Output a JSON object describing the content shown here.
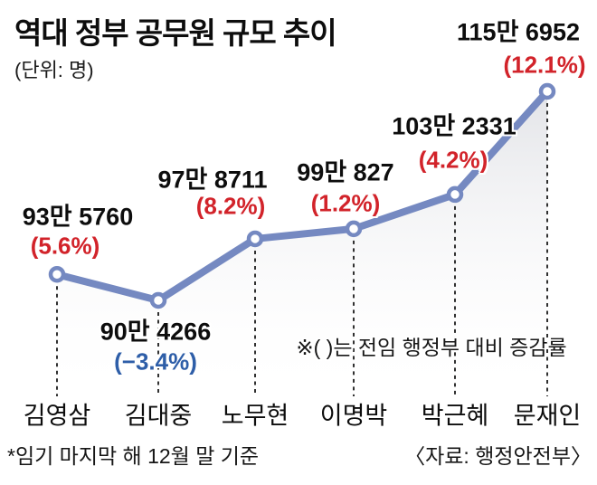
{
  "header": {
    "title": "역대 정부 공무원 규모 추이",
    "unit_note": "(단위: 명)"
  },
  "chart_data": {
    "type": "line",
    "title": "역대 정부 공무원 규모 추이",
    "unit": "명",
    "categories": [
      "김영삼",
      "김대중",
      "노무현",
      "이명박",
      "박근혜",
      "문재인"
    ],
    "values": [
      935760,
      904266,
      978711,
      990827,
      1032331,
      1156952
    ],
    "points": [
      {
        "president": "김영삼",
        "value_label": "93만 5760",
        "pct_label": "(5.6%)",
        "pct_color": "#d2232a"
      },
      {
        "president": "김대중",
        "value_label": "90만 4266",
        "pct_label": "(−3.4%)",
        "pct_color": "#2e5ea8"
      },
      {
        "president": "노무현",
        "value_label": "97만 8711",
        "pct_label": "(8.2%)",
        "pct_color": "#d2232a"
      },
      {
        "president": "이명박",
        "value_label": "99만 827",
        "pct_label": "(1.2%)",
        "pct_color": "#d2232a"
      },
      {
        "president": "박근혜",
        "value_label": "103만 2331",
        "pct_label": "(4.2%)",
        "pct_color": "#d2232a"
      },
      {
        "president": "문재인",
        "value_label": "115만 6952",
        "pct_label": "(12.1%)",
        "pct_color": "#d2232a"
      }
    ],
    "annotation": "※(  )는 전임 행정부 대비 증감률",
    "line_color": "#7589c1",
    "marker_fill": "#ffffff",
    "area_top_color": "#e2e3e7",
    "guide_line_color": "#1a1a1a",
    "legend_position": "none",
    "grid": false
  },
  "footer": {
    "basis_note": "*임기 마지막 해 12월 말 기준",
    "source": "〈자료: 행정안전부〉"
  }
}
